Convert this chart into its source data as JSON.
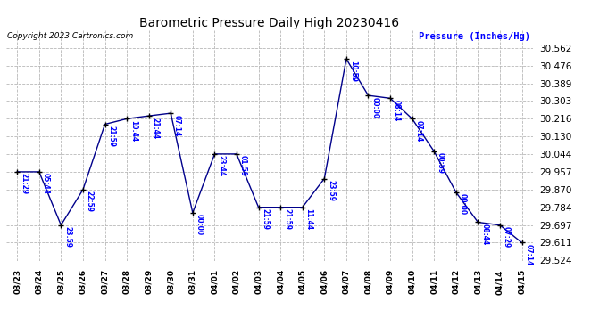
{
  "title": "Barometric Pressure Daily High 20230416",
  "ylabel": "Pressure (Inches/Hg)",
  "copyright": "Copyright 2023 Cartronics.com",
  "background_color": "#ffffff",
  "line_color": "#00008b",
  "grid_color": "#b8b8b8",
  "label_color": "#0000ff",
  "ylabel_color": "#0000ff",
  "copyright_color": "#000000",
  "title_color": "#000000",
  "ylim_min": 29.524,
  "ylim_max": 30.649,
  "yticks": [
    29.524,
    29.611,
    29.697,
    29.784,
    29.87,
    29.957,
    30.044,
    30.13,
    30.216,
    30.303,
    30.389,
    30.476,
    30.562
  ],
  "data": [
    {
      "date": "03/23",
      "value": 29.957,
      "time": "21:29"
    },
    {
      "date": "03/24",
      "value": 29.957,
      "time": "05:44"
    },
    {
      "date": "03/25",
      "value": 29.697,
      "time": "23:59"
    },
    {
      "date": "03/26",
      "value": 29.87,
      "time": "22:59"
    },
    {
      "date": "03/27",
      "value": 30.189,
      "time": "21:59"
    },
    {
      "date": "03/28",
      "value": 30.216,
      "time": "10:44"
    },
    {
      "date": "03/29",
      "value": 30.23,
      "time": "21:44"
    },
    {
      "date": "03/30",
      "value": 30.243,
      "time": "07:14"
    },
    {
      "date": "03/31",
      "value": 29.757,
      "time": "00:00"
    },
    {
      "date": "04/01",
      "value": 30.044,
      "time": "23:44"
    },
    {
      "date": "04/02",
      "value": 30.044,
      "time": "01:59"
    },
    {
      "date": "04/03",
      "value": 29.784,
      "time": "21:59"
    },
    {
      "date": "04/04",
      "value": 29.784,
      "time": "21:59"
    },
    {
      "date": "04/05",
      "value": 29.784,
      "time": "11:44"
    },
    {
      "date": "04/06",
      "value": 29.924,
      "time": "23:59"
    },
    {
      "date": "04/07",
      "value": 30.508,
      "time": "10:59"
    },
    {
      "date": "04/08",
      "value": 30.33,
      "time": "00:00"
    },
    {
      "date": "04/09",
      "value": 30.316,
      "time": "08:14"
    },
    {
      "date": "04/10",
      "value": 30.216,
      "time": "07:14"
    },
    {
      "date": "04/11",
      "value": 30.057,
      "time": "00:59"
    },
    {
      "date": "04/12",
      "value": 29.857,
      "time": "00:00"
    },
    {
      "date": "04/13",
      "value": 29.711,
      "time": "08:44"
    },
    {
      "date": "04/14",
      "value": 29.697,
      "time": "07:29"
    },
    {
      "date": "04/15",
      "value": 29.611,
      "time": "07:14"
    }
  ]
}
